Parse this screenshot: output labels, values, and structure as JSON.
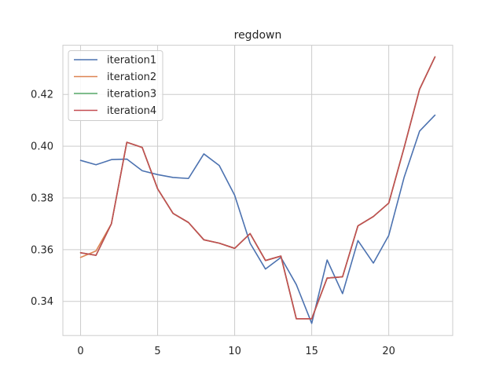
{
  "chart_data": {
    "type": "line",
    "title": "regdown",
    "xlabel": "",
    "ylabel": "",
    "xlim": [
      -1.15,
      24.15
    ],
    "ylim": [
      0.3268,
      0.439
    ],
    "xticks": [
      0,
      5,
      10,
      15,
      20
    ],
    "yticks": [
      0.34,
      0.36,
      0.38,
      0.4,
      0.42
    ],
    "ytick_labels": [
      "0.34",
      "0.36",
      "0.38",
      "0.40",
      "0.42"
    ],
    "grid": true,
    "legend_position": "top-left",
    "x": [
      0,
      1,
      2,
      3,
      4,
      5,
      6,
      7,
      8,
      9,
      10,
      11,
      12,
      13,
      14,
      15,
      16,
      17,
      18,
      19,
      20,
      21,
      22,
      23
    ],
    "series": [
      {
        "name": "iteration1",
        "color": "#4c72b0",
        "values": [
          0.3945,
          0.3928,
          0.3948,
          0.395,
          0.3905,
          0.389,
          0.3879,
          0.3875,
          0.397,
          0.3925,
          0.381,
          0.3625,
          0.3525,
          0.357,
          0.3465,
          0.3315,
          0.356,
          0.343,
          0.3635,
          0.3548,
          0.3655,
          0.388,
          0.4058,
          0.412
        ]
      },
      {
        "name": "iteration2",
        "color": "#dd8452",
        "values": [
          0.357,
          0.3595,
          0.37,
          0.4015,
          0.3995,
          0.3835,
          0.374,
          0.3705,
          0.3638,
          0.3625,
          0.3605,
          0.3662,
          0.3558,
          0.3575,
          0.3333,
          0.3333,
          0.349,
          0.3495,
          0.3692,
          0.3728,
          0.378,
          0.3995,
          0.422,
          0.4345
        ]
      },
      {
        "name": "iteration3",
        "color": "#55a868",
        "values": [
          0.3588,
          0.3578,
          0.37,
          0.4015,
          0.3995,
          0.3835,
          0.374,
          0.3705,
          0.3638,
          0.3625,
          0.3605,
          0.3662,
          0.3558,
          0.3575,
          0.3333,
          0.3333,
          0.349,
          0.3495,
          0.3692,
          0.3728,
          0.378,
          0.3995,
          0.422,
          0.4345
        ]
      },
      {
        "name": "iteration4",
        "color": "#c44e52",
        "values": [
          0.3588,
          0.3578,
          0.37,
          0.4015,
          0.3995,
          0.3835,
          0.374,
          0.3705,
          0.3638,
          0.3625,
          0.3605,
          0.3662,
          0.3558,
          0.3575,
          0.3333,
          0.3333,
          0.349,
          0.3495,
          0.3692,
          0.3728,
          0.378,
          0.3995,
          0.422,
          0.4345
        ]
      }
    ]
  }
}
